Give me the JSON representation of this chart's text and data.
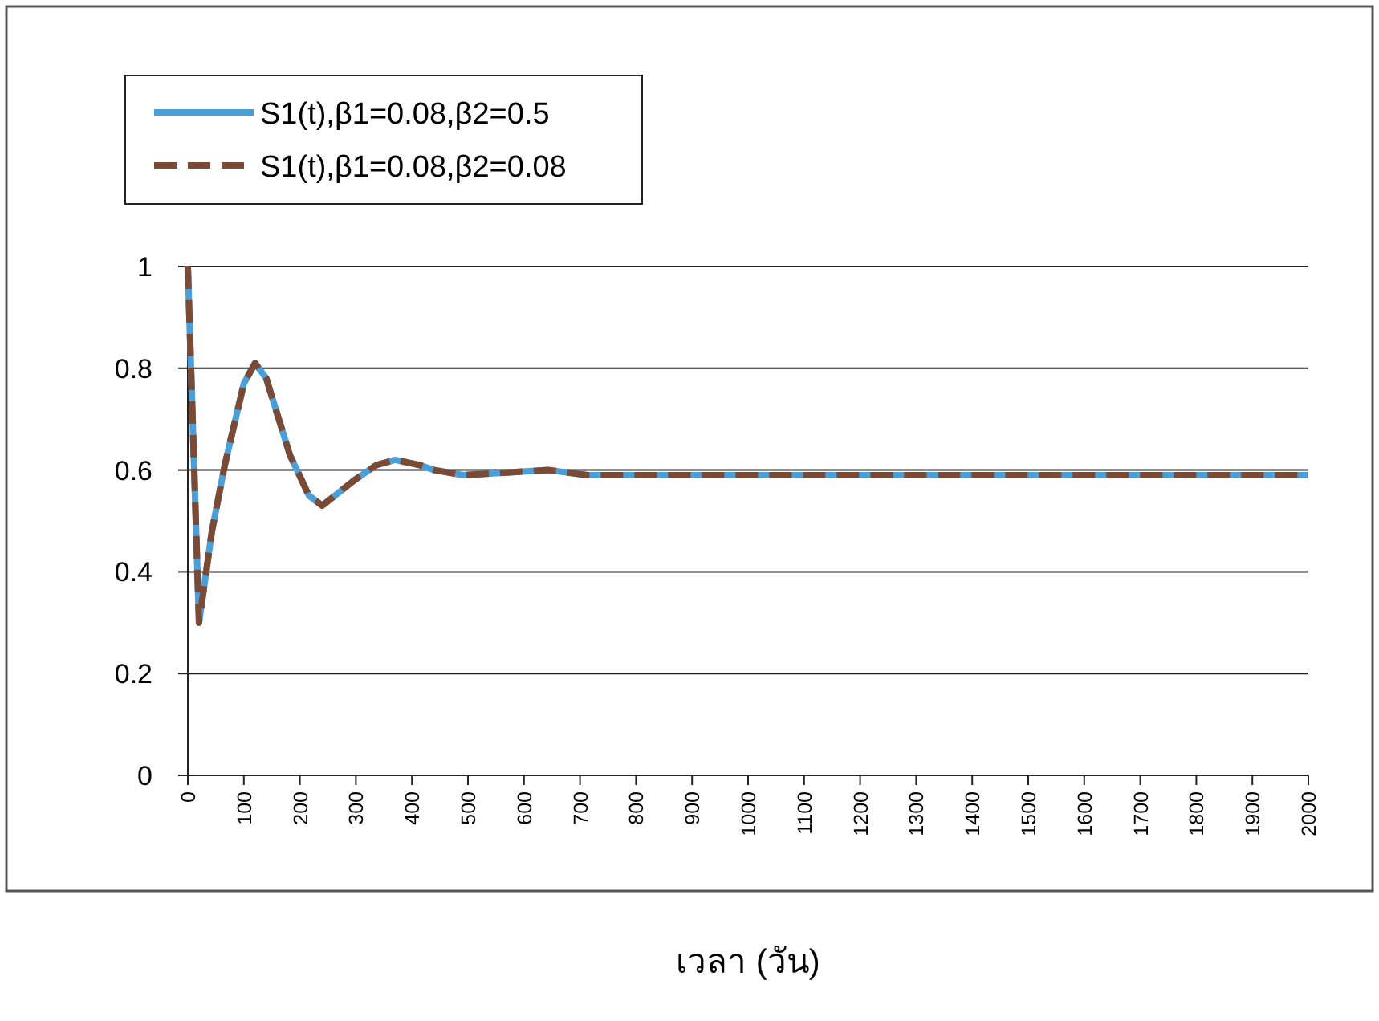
{
  "chart_data": {
    "type": "line",
    "xlabel": "เวลา (วัน)",
    "xlim": [
      0,
      2000
    ],
    "ylim": [
      0,
      1
    ],
    "xticks": [
      0,
      100,
      200,
      300,
      400,
      500,
      600,
      700,
      800,
      900,
      1000,
      1100,
      1200,
      1300,
      1400,
      1500,
      1600,
      1700,
      1800,
      1900,
      2000
    ],
    "yticks": [
      0,
      0.2,
      0.4,
      0.6,
      0.8,
      1
    ],
    "grid": "y",
    "legend": "top left",
    "series": [
      {
        "name": "S1(t),β1=0.08,β2=0.5",
        "color": "#4a9fd8",
        "line_style": "solid",
        "x": [
          0,
          20,
          43,
          66,
          100,
          120,
          140,
          182,
          216,
          240,
          297,
          337,
          370,
          413,
          440,
          492,
          644,
          713,
          1000,
          1500,
          2000
        ],
        "values": [
          1,
          0.3,
          0.48,
          0.61,
          0.77,
          0.81,
          0.78,
          0.63,
          0.55,
          0.53,
          0.58,
          0.61,
          0.62,
          0.61,
          0.6,
          0.59,
          0.6,
          0.59,
          0.59,
          0.59,
          0.59
        ]
      },
      {
        "name": "S1(t),β1=0.08,β2=0.08",
        "color": "#7b4a35",
        "line_style": "dashed",
        "x": [
          0,
          20,
          43,
          66,
          100,
          120,
          140,
          182,
          216,
          240,
          297,
          337,
          370,
          413,
          440,
          492,
          644,
          713,
          1000,
          1500,
          2000
        ],
        "values": [
          1,
          0.3,
          0.48,
          0.61,
          0.77,
          0.81,
          0.78,
          0.63,
          0.55,
          0.53,
          0.58,
          0.61,
          0.62,
          0.61,
          0.6,
          0.59,
          0.6,
          0.59,
          0.59,
          0.59,
          0.59
        ]
      }
    ]
  }
}
